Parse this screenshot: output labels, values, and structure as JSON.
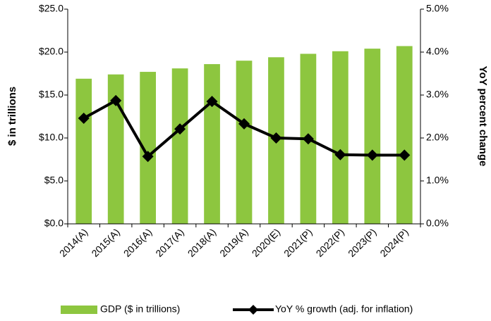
{
  "chart_data": {
    "type": "bar-line",
    "ylabel": "$ in trillions",
    "y2label": "YoY percent change",
    "categories": [
      "2014(A)",
      "2015(A)",
      "2016(A)",
      "2017(A)",
      "2018(A)",
      "2019(A)",
      "2020(E)",
      "2021(P)",
      "2022(P)",
      "2023(P)",
      "2024(P)"
    ],
    "series": [
      {
        "name": "GDP ($ in trillions)",
        "color": "#8dc63f",
        "kind": "bar",
        "axis": "y",
        "values": [
          16.9,
          17.4,
          17.7,
          18.1,
          18.6,
          19.0,
          19.4,
          19.8,
          20.1,
          20.4,
          20.7
        ]
      },
      {
        "name": "YoY % growth (adj. for inflation)",
        "color": "#000000",
        "kind": "line",
        "axis": "y2",
        "values": [
          2.46,
          2.87,
          1.57,
          2.21,
          2.85,
          2.33,
          2.0,
          1.98,
          1.61,
          1.6,
          1.6
        ]
      }
    ],
    "ylim": [
      0,
      25
    ],
    "yticks": [
      {
        "value": 0,
        "label": "$0.0"
      },
      {
        "value": 5,
        "label": "$5.0"
      },
      {
        "value": 10,
        "label": "$10.0"
      },
      {
        "value": 15,
        "label": "$15.0"
      },
      {
        "value": 20,
        "label": "$20.0"
      },
      {
        "value": 25,
        "label": "$25.0"
      }
    ],
    "y2lim": [
      0,
      5
    ],
    "y2ticks": [
      {
        "value": 0,
        "label": "0.0%"
      },
      {
        "value": 1,
        "label": "1.0%"
      },
      {
        "value": 2,
        "label": "2.0%"
      },
      {
        "value": 3,
        "label": "3.0%"
      },
      {
        "value": 4,
        "label": "4.0%"
      },
      {
        "value": 5,
        "label": "5.0%"
      }
    ],
    "legend": "bottom"
  }
}
